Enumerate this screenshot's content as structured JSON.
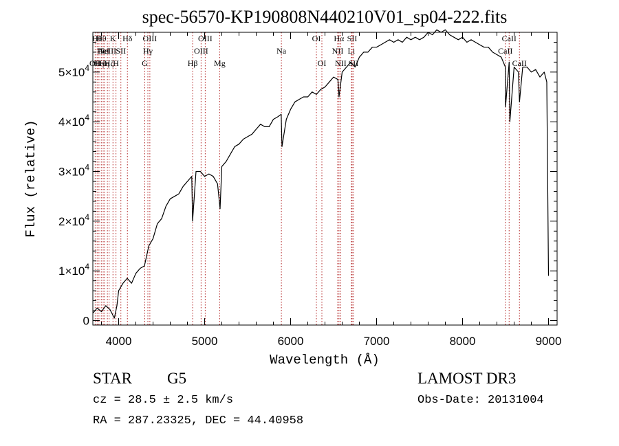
{
  "chart_data": {
    "type": "line",
    "title": "spec-56570-KP190808N440210V01_sp04-222.fits",
    "xlabel": "Wavelength (Å)",
    "ylabel": "Flux (relative)",
    "xlim": [
      3700,
      9100
    ],
    "ylim": [
      -900,
      58000
    ],
    "xticks": [
      {
        "value": 4000,
        "label": "4000"
      },
      {
        "value": 5000,
        "label": "5000"
      },
      {
        "value": 6000,
        "label": "6000"
      },
      {
        "value": 7000,
        "label": "7000"
      },
      {
        "value": 8000,
        "label": "8000"
      },
      {
        "value": 9000,
        "label": "9000"
      }
    ],
    "yticks": [
      {
        "value": 0,
        "mant": "0",
        "exp": ""
      },
      {
        "value": 10000,
        "mant": "1×10",
        "exp": "4"
      },
      {
        "value": 20000,
        "mant": "2×10",
        "exp": "4"
      },
      {
        "value": 30000,
        "mant": "3×10",
        "exp": "4"
      },
      {
        "value": 40000,
        "mant": "4×10",
        "exp": "4"
      },
      {
        "value": 50000,
        "mant": "5×10",
        "exp": "4"
      }
    ],
    "series": [
      {
        "name": "flux",
        "x": [
          3700,
          3750,
          3800,
          3850,
          3900,
          3950,
          3980,
          4000,
          4050,
          4100,
          4150,
          4200,
          4250,
          4300,
          4350,
          4400,
          4450,
          4500,
          4550,
          4600,
          4650,
          4700,
          4750,
          4800,
          4850,
          4860,
          4900,
          4950,
          5000,
          5050,
          5100,
          5150,
          5180,
          5200,
          5250,
          5300,
          5350,
          5400,
          5450,
          5500,
          5550,
          5600,
          5650,
          5700,
          5750,
          5800,
          5850,
          5890,
          5900,
          5950,
          6000,
          6050,
          6100,
          6150,
          6200,
          6250,
          6300,
          6350,
          6400,
          6450,
          6500,
          6550,
          6563,
          6600,
          6650,
          6700,
          6750,
          6800,
          6850,
          6900,
          6950,
          7000,
          7050,
          7100,
          7150,
          7200,
          7250,
          7300,
          7350,
          7400,
          7450,
          7500,
          7550,
          7600,
          7650,
          7700,
          7750,
          7800,
          7850,
          7900,
          7950,
          8000,
          8050,
          8100,
          8150,
          8200,
          8250,
          8300,
          8350,
          8400,
          8450,
          8498,
          8500,
          8542,
          8550,
          8600,
          8650,
          8662,
          8700,
          8750,
          8800,
          8850,
          8900,
          8950,
          8980,
          9000
        ],
        "y": [
          1500,
          2500,
          1800,
          3000,
          2200,
          500,
          3000,
          6000,
          7500,
          8500,
          7500,
          9500,
          10500,
          11000,
          15000,
          16500,
          19500,
          20500,
          23000,
          24500,
          25000,
          25500,
          27000,
          28000,
          29000,
          20000,
          30000,
          30000,
          29000,
          29500,
          29000,
          27500,
          22500,
          31000,
          32000,
          33500,
          35000,
          35500,
          36500,
          37000,
          37500,
          38500,
          39500,
          39000,
          39000,
          40500,
          41000,
          41500,
          35000,
          40500,
          42500,
          44000,
          44500,
          45000,
          45000,
          46000,
          45500,
          46500,
          47000,
          48000,
          49000,
          48500,
          45000,
          50000,
          51000,
          52000,
          51000,
          53000,
          54000,
          54000,
          55000,
          55000,
          55500,
          56000,
          56500,
          56000,
          56500,
          56000,
          57000,
          56500,
          57000,
          56500,
          57000,
          58000,
          57500,
          58500,
          58000,
          58500,
          57500,
          57000,
          56500,
          57000,
          56000,
          56500,
          56000,
          55500,
          55000,
          55000,
          54000,
          53500,
          53000,
          51000,
          43000,
          52000,
          40000,
          51000,
          50000,
          44000,
          51000,
          51000,
          50000,
          50500,
          49000,
          50000,
          48000,
          9000
        ]
      }
    ],
    "lines": [
      {
        "wl": 3727,
        "label": "OII",
        "row": 2
      },
      {
        "wl": 3750,
        "label": "Hθ",
        "row": 0
      },
      {
        "wl": 3771,
        "label": "Hη",
        "row": 2
      },
      {
        "wl": 3798,
        "label": "Hθ",
        "row": 0
      },
      {
        "wl": 3820,
        "label": "HeI",
        "row": 1
      },
      {
        "wl": 3835,
        "label": "Hη",
        "row": 2
      },
      {
        "wl": 3869,
        "label": "NeIII",
        "row": 1
      },
      {
        "wl": 3889,
        "label": "Hζ",
        "row": 2
      },
      {
        "wl": 3934,
        "label": "K",
        "row": 0
      },
      {
        "wl": 3969,
        "label": "H",
        "row": 2
      },
      {
        "wl": 4026,
        "label": "SII",
        "row": 1
      },
      {
        "wl": 4102,
        "label": "Hδ",
        "row": 0
      },
      {
        "wl": 4304,
        "label": "G",
        "row": 2
      },
      {
        "wl": 4340,
        "label": "Hγ",
        "row": 1
      },
      {
        "wl": 4363,
        "label": "OIII",
        "row": 0
      },
      {
        "wl": 4861,
        "label": "Hβ",
        "row": 2
      },
      {
        "wl": 4959,
        "label": "OIII",
        "row": 1
      },
      {
        "wl": 5007,
        "label": "OIII",
        "row": 0
      },
      {
        "wl": 5175,
        "label": "Mg",
        "row": 2
      },
      {
        "wl": 5893,
        "label": "Na",
        "row": 1
      },
      {
        "wl": 6300,
        "label": "OI",
        "row": 0
      },
      {
        "wl": 6364,
        "label": "OI",
        "row": 2
      },
      {
        "wl": 6548,
        "label": "NII",
        "row": 1
      },
      {
        "wl": 6563,
        "label": "Hα",
        "row": 0
      },
      {
        "wl": 6583,
        "label": "NII",
        "row": 2
      },
      {
        "wl": 6707,
        "label": "Li",
        "row": 1
      },
      {
        "wl": 6716,
        "label": "SII",
        "row": 0
      },
      {
        "wl": 6731,
        "label": "SII",
        "row": 2
      },
      {
        "wl": 8498,
        "label": "CaII",
        "row": 1
      },
      {
        "wl": 8542,
        "label": "CaII",
        "row": 0
      },
      {
        "wl": 8662,
        "label": "CaII",
        "row": 2
      }
    ]
  },
  "footer": {
    "class_label": "STAR",
    "subclass": "G5",
    "survey": "LAMOST DR3",
    "cz": "cz = 28.5 ± 2.5 km/s",
    "obs_date": "Obs-Date: 20131004",
    "coords": "RA = 287.23325, DEC =  44.40958"
  }
}
